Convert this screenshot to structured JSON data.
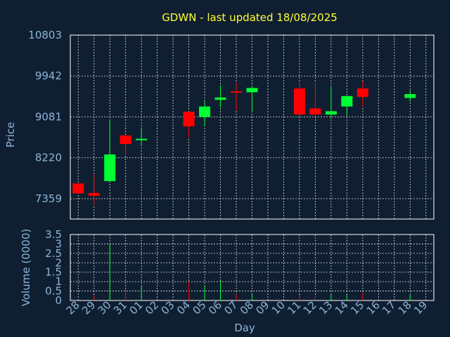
{
  "chart_data": [
    {
      "type": "candlestick",
      "title": "GDWN - last updated 18/08/2025",
      "ylabel": "Price",
      "yticks": [
        7359,
        8220,
        9081,
        9942,
        10803
      ],
      "ylim": [
        6930,
        10803
      ],
      "categories": [
        "28",
        "29",
        "30",
        "31",
        "01",
        "02",
        "03",
        "04",
        "05",
        "06",
        "07",
        "08",
        "09",
        "10",
        "11",
        "12",
        "13",
        "14",
        "15",
        "16",
        "17",
        "18",
        "19"
      ],
      "candles": [
        {
          "x": "28",
          "open": 7680,
          "high": 7680,
          "low": 7470,
          "close": 7470
        },
        {
          "x": "29",
          "open": 7480,
          "high": 7870,
          "low": 7230,
          "close": 7420
        },
        {
          "x": "30",
          "open": 7730,
          "high": 9010,
          "low": 7730,
          "close": 8290
        },
        {
          "x": "31",
          "open": 8690,
          "high": 8690,
          "low": 8290,
          "close": 8510
        },
        {
          "x": "01",
          "open": 8590,
          "high": 8840,
          "low": 8490,
          "close": 8620
        },
        {
          "x": "04",
          "open": 9190,
          "high": 9190,
          "low": 8640,
          "close": 8880
        },
        {
          "x": "05",
          "open": 9080,
          "high": 9420,
          "low": 8880,
          "close": 9300
        },
        {
          "x": "06",
          "open": 9440,
          "high": 9750,
          "low": 9280,
          "close": 9490
        },
        {
          "x": "07",
          "open": 9620,
          "high": 9810,
          "low": 9220,
          "close": 9600
        },
        {
          "x": "08",
          "open": 9600,
          "high": 9730,
          "low": 9200,
          "close": 9690
        },
        {
          "x": "11",
          "open": 9680,
          "high": 9790,
          "low": 9130,
          "close": 9130
        },
        {
          "x": "12",
          "open": 9260,
          "high": 9800,
          "low": 9090,
          "close": 9130
        },
        {
          "x": "13",
          "open": 9130,
          "high": 9720,
          "low": 9050,
          "close": 9200
        },
        {
          "x": "14",
          "open": 9300,
          "high": 9520,
          "low": 9100,
          "close": 9520
        },
        {
          "x": "15",
          "open": 9680,
          "high": 9830,
          "low": 9290,
          "close": 9500
        },
        {
          "x": "18",
          "open": 9480,
          "high": 9640,
          "low": 9400,
          "close": 9560
        }
      ]
    },
    {
      "type": "bar",
      "ylabel": "Volume (0000)",
      "xlabel": "Day",
      "yticks": [
        0,
        0.5,
        1,
        1.5,
        2,
        2.5,
        3,
        3.5
      ],
      "ylim": [
        0,
        3.5
      ],
      "categories": [
        "28",
        "29",
        "30",
        "31",
        "01",
        "02",
        "03",
        "04",
        "05",
        "06",
        "07",
        "08",
        "09",
        "10",
        "11",
        "12",
        "13",
        "14",
        "15",
        "16",
        "17",
        "18",
        "19"
      ],
      "values": [
        0,
        0.3,
        3.0,
        0.6,
        0.8,
        0,
        0,
        1.0,
        0.8,
        1.05,
        0.35,
        0.3,
        0,
        0,
        0.3,
        0.25,
        0.3,
        0.3,
        0.4,
        0,
        0,
        0.3,
        0
      ],
      "colors": [
        "#ff0000",
        "#ff0000",
        "#00ff33",
        "#ff0000",
        "#00ff33",
        "#00ff33",
        "#00ff33",
        "#ff0000",
        "#00ff33",
        "#00ff33",
        "#ff0000",
        "#00ff33",
        "#00ff33",
        "#00ff33",
        "#ff0000",
        "#ff0000",
        "#00ff33",
        "#00ff33",
        "#ff0000",
        "#00ff33",
        "#00ff33",
        "#00ff33",
        "#00ff33"
      ]
    }
  ],
  "colors": {
    "background": "#0f1f31",
    "up": "#00ff33",
    "down": "#ff0000",
    "title": "#ffff33",
    "axis_text": "#8db4d8",
    "grid": "#ffffff"
  }
}
